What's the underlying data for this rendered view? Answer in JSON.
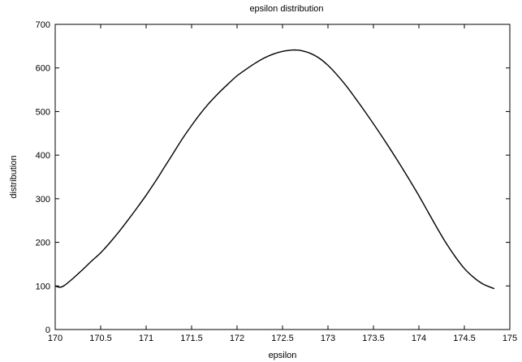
{
  "chart_data": {
    "type": "line",
    "title": "epsilon distribution",
    "xlabel": "epsilon",
    "ylabel": "distribution",
    "xlim": [
      170,
      175
    ],
    "ylim": [
      0,
      700
    ],
    "xticks": [
      170,
      170.5,
      171,
      171.5,
      172,
      172.5,
      173,
      173.5,
      174,
      174.5,
      175
    ],
    "xtick_labels": [
      "170",
      "170.5",
      "171",
      "171.5",
      "172",
      "172.5",
      "173",
      "173.5",
      "174",
      "174.5",
      "175"
    ],
    "yticks": [
      0,
      100,
      200,
      300,
      400,
      500,
      600,
      700
    ],
    "ytick_labels": [
      "0",
      "100",
      "200",
      "300",
      "400",
      "500",
      "600",
      "700"
    ],
    "grid": false,
    "legend": "none",
    "line_color": "#000000",
    "series": [
      {
        "x": [
          170.0,
          170.05,
          170.1,
          170.2,
          170.3,
          170.4,
          170.5,
          170.6,
          170.7,
          170.8,
          170.9,
          171.0,
          171.1,
          171.2,
          171.3,
          171.4,
          171.5,
          171.6,
          171.7,
          171.8,
          171.9,
          172.0,
          172.1,
          172.2,
          172.3,
          172.4,
          172.5,
          172.6,
          172.65,
          172.7,
          172.8,
          172.9,
          173.0,
          173.1,
          173.2,
          173.3,
          173.4,
          173.5,
          173.6,
          173.7,
          173.8,
          173.9,
          174.0,
          174.1,
          174.2,
          174.3,
          174.4,
          174.5,
          174.6,
          174.7,
          174.8,
          174.83
        ],
        "y": [
          100,
          97,
          101,
          118,
          137,
          157,
          176,
          199,
          224,
          251,
          279,
          308,
          339,
          372,
          405,
          438,
          468,
          496,
          521,
          543,
          563,
          582,
          597,
          611,
          623,
          632,
          638,
          641,
          641,
          640,
          634,
          623,
          606,
          584,
          559,
          531,
          502,
          472,
          441,
          409,
          376,
          342,
          307,
          270,
          233,
          198,
          167,
          140,
          120,
          105,
          96,
          94
        ]
      }
    ]
  }
}
